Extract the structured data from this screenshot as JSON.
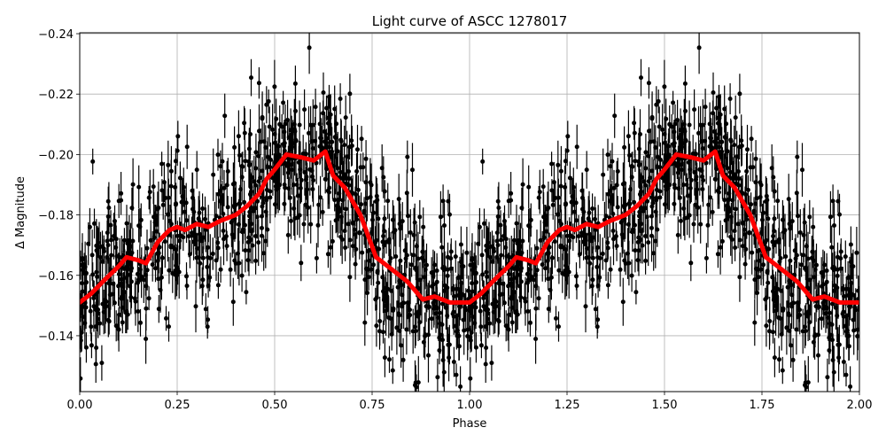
{
  "chart_data": {
    "type": "scatter",
    "title": "Light curve of ASCC 1278017",
    "xlabel": "Phase",
    "ylabel": "Δ Magnitude",
    "xlim": [
      0.0,
      2.0
    ],
    "ylim": [
      -0.1215,
      -0.2403
    ],
    "y_inverted": true,
    "grid": true,
    "x_ticks": [
      0.0,
      0.25,
      0.5,
      0.75,
      1.0,
      1.25,
      1.5,
      1.75,
      2.0
    ],
    "x_tick_labels": [
      "0.00",
      "0.25",
      "0.50",
      "0.75",
      "1.00",
      "1.25",
      "1.50",
      "1.75",
      "2.00"
    ],
    "y_ticks": [
      -0.24,
      -0.22,
      -0.2,
      -0.18,
      -0.16,
      -0.14
    ],
    "y_tick_labels": [
      "−0.24",
      "−0.22",
      "−0.20",
      "−0.18",
      "−0.16",
      "−0.14"
    ],
    "series": [
      {
        "name": "observations",
        "style": "black points with vertical error bars",
        "color": "#000000",
        "marker_radius": 2.5,
        "typical_error": 0.006,
        "scatter_sigma": 0.013,
        "n_points_per_cycle": 900,
        "note": "Dense photometric points phased over two cycles; same data repeated for phase 1-2"
      },
      {
        "name": "smoothed model",
        "style": "thick red line",
        "color": "#ff0000",
        "linewidth": 5,
        "phase": [
          0.0,
          0.03,
          0.06,
          0.1,
          0.12,
          0.15,
          0.17,
          0.2,
          0.23,
          0.25,
          0.27,
          0.3,
          0.33,
          0.36,
          0.4,
          0.43,
          0.46,
          0.48,
          0.5,
          0.53,
          0.57,
          0.6,
          0.63,
          0.65,
          0.68,
          0.72,
          0.76,
          0.8,
          0.84,
          0.88,
          0.91,
          0.95,
          0.98,
          1.0
        ],
        "values": [
          -0.151,
          -0.154,
          -0.158,
          -0.163,
          -0.166,
          -0.165,
          -0.164,
          -0.171,
          -0.175,
          -0.176,
          -0.175,
          -0.177,
          -0.176,
          -0.178,
          -0.18,
          -0.183,
          -0.187,
          -0.192,
          -0.195,
          -0.2,
          -0.199,
          -0.198,
          -0.201,
          -0.193,
          -0.189,
          -0.18,
          -0.166,
          -0.162,
          -0.158,
          -0.152,
          -0.153,
          -0.151,
          -0.151,
          -0.151
        ],
        "repeats_every": 1.0
      }
    ]
  },
  "colors": {
    "grid": "#b0b0b0",
    "axes": "#000000",
    "points": "#000000",
    "model": "#ff0000"
  }
}
